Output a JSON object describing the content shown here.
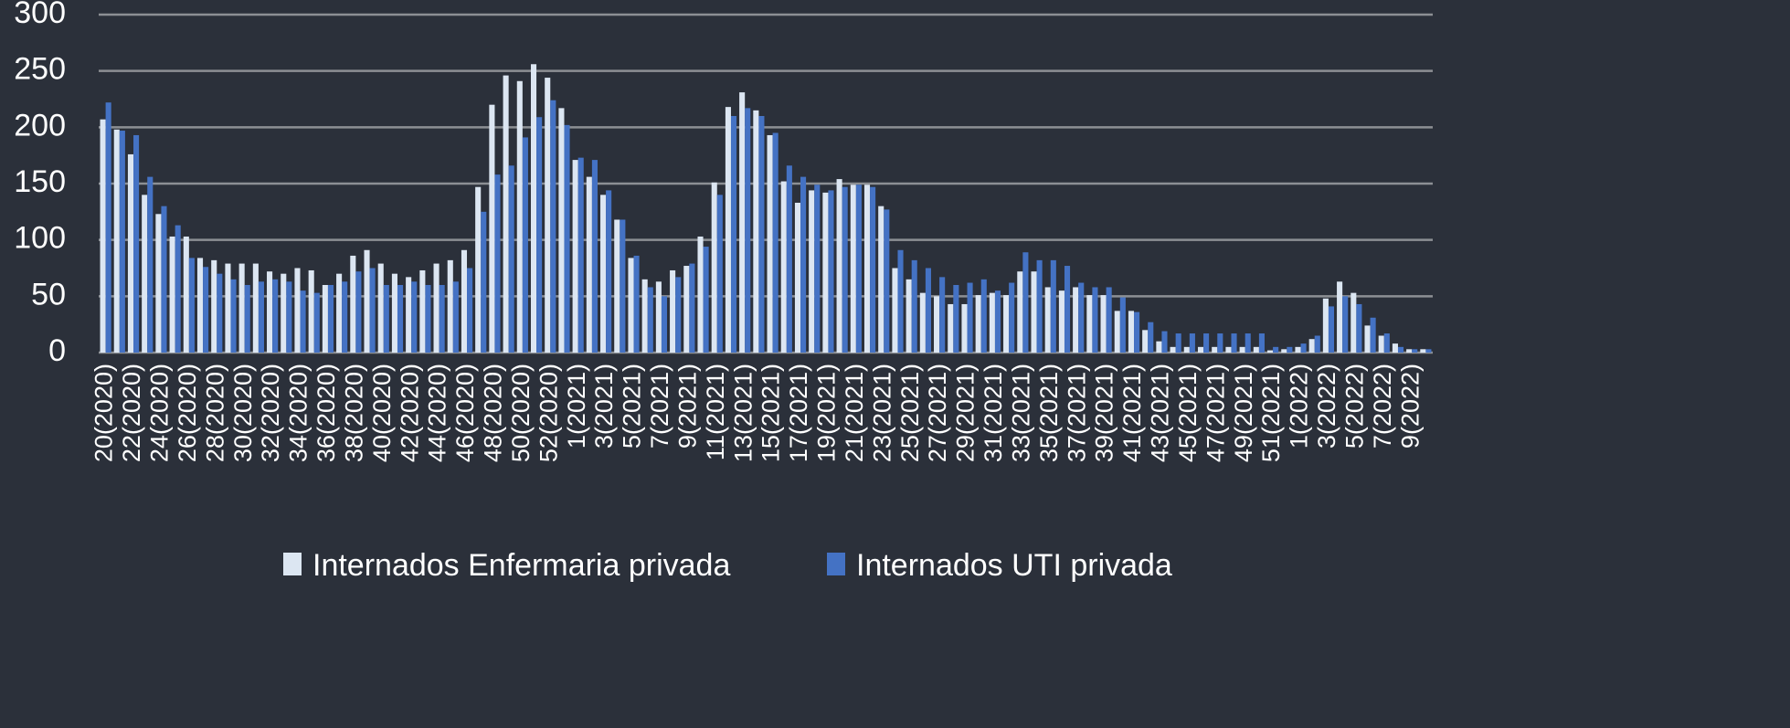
{
  "chart_data": {
    "type": "bar",
    "categories": [
      "20(2020)",
      null,
      "22(2020)",
      null,
      "24(2020)",
      null,
      "26(2020)",
      null,
      "28(2020)",
      null,
      "30(2020)",
      null,
      "32(2020)",
      null,
      "34(2020)",
      null,
      "36(2020)",
      null,
      "38(2020)",
      null,
      "40(2020)",
      null,
      "42(2020)",
      null,
      "44(2020)",
      null,
      "46(2020)",
      null,
      "48(2020)",
      null,
      "50(2020)",
      null,
      "52(2020)",
      null,
      "1(2021)",
      null,
      "3(2021)",
      null,
      "5(2021)",
      null,
      "7(2021)",
      null,
      "9(2021)",
      null,
      "11(2021)",
      null,
      "13(2021)",
      null,
      "15(2021)",
      null,
      "17(2021)",
      null,
      "19(2021)",
      null,
      "21(2021)",
      null,
      "23(2021)",
      null,
      "25(2021)",
      null,
      "27(2021)",
      null,
      "29(2021)",
      null,
      "31(2021)",
      null,
      "33(2021)",
      null,
      "35(2021)",
      null,
      "37(2021)",
      null,
      "39(2021)",
      null,
      "41(2021)",
      null,
      "43(2021)",
      null,
      "45(2021)",
      null,
      "47(2021)",
      null,
      "49(2021)",
      null,
      "51(2021)",
      null,
      "1(2022)",
      null,
      "3(2022)",
      null,
      "5(2022)",
      null,
      "7(2022)",
      null,
      "9(2022)",
      null
    ],
    "series": [
      {
        "name": "Internados Enfermaria privada",
        "color": "#dce6f2",
        "values": [
          207,
          198,
          176,
          140,
          123,
          103,
          103,
          84,
          82,
          79,
          79,
          79,
          72,
          70,
          75,
          73,
          60,
          70,
          86,
          91,
          79,
          70,
          67,
          73,
          79,
          82,
          91,
          147,
          220,
          246,
          241,
          256,
          244,
          217,
          171,
          156,
          140,
          118,
          84,
          65,
          63,
          73,
          77,
          103,
          151,
          218,
          231,
          215,
          193,
          152,
          133,
          144,
          142,
          154,
          149,
          149,
          130,
          75,
          65,
          53,
          50,
          43,
          43,
          51,
          53,
          51,
          72,
          72,
          58,
          55,
          58,
          51,
          51,
          37,
          37,
          20,
          10,
          5,
          5,
          5,
          5,
          5,
          5,
          5,
          2,
          3,
          5,
          12,
          48,
          63,
          53,
          24,
          15,
          8,
          3,
          3
        ]
      },
      {
        "name": "Internados UTI privada",
        "color": "#4472c4",
        "values": [
          222,
          197,
          193,
          156,
          130,
          113,
          84,
          76,
          70,
          65,
          60,
          63,
          65,
          63,
          55,
          53,
          60,
          63,
          72,
          75,
          60,
          60,
          63,
          60,
          60,
          63,
          75,
          125,
          158,
          166,
          191,
          209,
          224,
          202,
          173,
          171,
          144,
          118,
          86,
          58,
          50,
          67,
          79,
          94,
          140,
          210,
          217,
          210,
          195,
          166,
          156,
          149,
          144,
          147,
          149,
          147,
          127,
          91,
          82,
          75,
          67,
          60,
          62,
          65,
          55,
          62,
          89,
          82,
          82,
          77,
          62,
          58,
          58,
          49,
          36,
          27,
          19,
          17,
          17,
          17,
          17,
          17,
          17,
          17,
          5,
          5,
          8,
          15,
          41,
          50,
          43,
          31,
          17,
          5,
          3,
          3
        ]
      }
    ],
    "ylim": [
      0,
      300
    ],
    "yticks": [
      0,
      50,
      100,
      150,
      200,
      250,
      300
    ],
    "grid": true,
    "legend": "bottom"
  }
}
